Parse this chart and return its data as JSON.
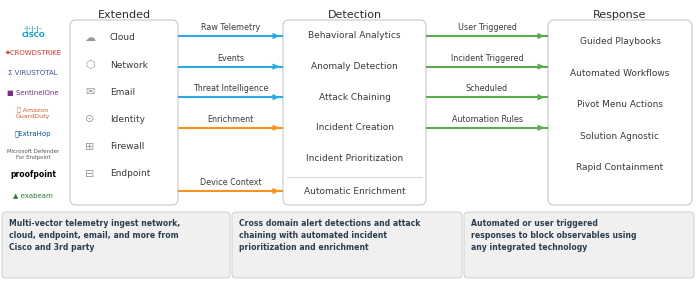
{
  "title_extended": "Extended",
  "title_detection": "Detection",
  "title_response": "Response",
  "extended_items": [
    "Cloud",
    "Network",
    "Email",
    "Identity",
    "Firewall",
    "Endpoint"
  ],
  "detection_items": [
    "Behavioral Analytics",
    "Anomaly Detection",
    "Attack Chaining",
    "Incident Creation",
    "Incident Prioritization",
    "Automatic Enrichment"
  ],
  "response_items": [
    "Guided Playbooks",
    "Automated Workflows",
    "Pivot Menu Actions",
    "Solution Agnostic",
    "Rapid Containment"
  ],
  "blue_arrows": [
    "Raw Telemetry",
    "Events",
    "Threat Intelligence"
  ],
  "orange_arrows": [
    "Enrichment",
    "Device Context"
  ],
  "green_arrows": [
    "User Triggered",
    "Incident Triggered",
    "Scheduled",
    "Automation Rules"
  ],
  "footer_extended": "Multi-vector telemetry ingest network,\ncloud, endpoint, email, and more from\nCisco and 3rd party",
  "footer_detection": "Cross domain alert detections and attack\nchaining with automated incident\nprioritization and enrichment",
  "footer_response": "Automated or user triggered\nresponses to block observables using\nany integrated technology",
  "bg_color": "#ffffff",
  "box_border": "#c8c8c8",
  "blue_color": "#29abe2",
  "orange_color": "#f7941d",
  "green_color": "#5dab50",
  "title_color": "#2c2c2c",
  "text_color": "#3a3a3a",
  "footer_bg": "#f0f0f0",
  "logo_cisco_color": "#049fd9",
  "logo_crowdstrike_color": "#e5332a",
  "logo_virustotal_color": "#3355aa",
  "logo_sentinelone_color": "#7b2d8b",
  "logo_guardduty_color": "#e05b2a",
  "logo_extrahop_color": "#0055aa",
  "logo_proofpoint_color": "#000000",
  "logo_exabeam_color": "#2e7d32",
  "logo_defender_color": "#555555"
}
